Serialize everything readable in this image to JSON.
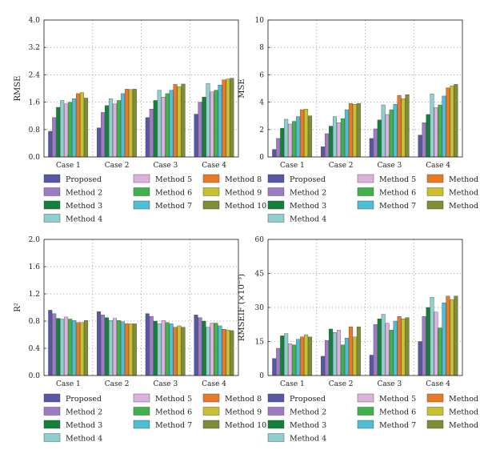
{
  "colors": {
    "Proposed": "#5a56a6",
    "Method 2": "#9d7cc4",
    "Method 3": "#13803c",
    "Method 4": "#8fcfcf",
    "Method 5": "#dcb2dc",
    "Method 6": "#40b24c",
    "Method 7": "#4cbfd6",
    "Method 8": "#e87a26",
    "Method 9": "#c8c02c",
    "Method 10": "#7e8e34"
  },
  "legend_layout": [
    [
      "Proposed",
      "Method 5",
      "Method 8"
    ],
    [
      "Method 2",
      "Method 6",
      "Method 9"
    ],
    [
      "Method 3",
      "Method 7",
      "Method 10"
    ],
    [
      "Method 4"
    ]
  ],
  "chart_data": [
    {
      "type": "bar",
      "ylabel": "RMSE",
      "ylim": [
        0,
        4.0
      ],
      "yticks": [
        "0.0",
        "0.8",
        "1.6",
        "2.4",
        "3.2",
        "4.0"
      ],
      "grid": true,
      "legend": "below",
      "categories": [
        "Case 1",
        "Case 2",
        "Case 3",
        "Case 4"
      ],
      "series": [
        {
          "name": "Proposed",
          "values": [
            0.75,
            0.85,
            1.15,
            1.25
          ]
        },
        {
          "name": "Method 2",
          "values": [
            1.15,
            1.3,
            1.4,
            1.6
          ]
        },
        {
          "name": "Method 3",
          "values": [
            1.45,
            1.5,
            1.65,
            1.75
          ]
        },
        {
          "name": "Method 4",
          "values": [
            1.65,
            1.7,
            1.95,
            2.15
          ]
        },
        {
          "name": "Method 5",
          "values": [
            1.55,
            1.55,
            1.75,
            1.9
          ]
        },
        {
          "name": "Method 6",
          "values": [
            1.6,
            1.65,
            1.85,
            1.95
          ]
        },
        {
          "name": "Method 7",
          "values": [
            1.7,
            1.85,
            1.95,
            2.1
          ]
        },
        {
          "name": "Method 8",
          "values": [
            1.85,
            1.98,
            2.12,
            2.25
          ]
        },
        {
          "name": "Method 9",
          "values": [
            1.88,
            1.97,
            2.05,
            2.28
          ]
        },
        {
          "name": "Method 10",
          "values": [
            1.72,
            1.98,
            2.13,
            2.3
          ]
        }
      ]
    },
    {
      "type": "bar",
      "ylabel": "MSE",
      "ylim": [
        0,
        10
      ],
      "yticks": [
        "0",
        "2",
        "4",
        "6",
        "8",
        "10"
      ],
      "grid": true,
      "legend": "below",
      "categories": [
        "Case 1",
        "Case 2",
        "Case 3",
        "Case 4"
      ],
      "series": [
        {
          "name": "Proposed",
          "values": [
            0.55,
            0.75,
            1.35,
            1.6
          ]
        },
        {
          "name": "Method 2",
          "values": [
            1.35,
            1.7,
            2.05,
            2.5
          ]
        },
        {
          "name": "Method 3",
          "values": [
            2.1,
            2.25,
            2.7,
            3.1
          ]
        },
        {
          "name": "Method 4",
          "values": [
            2.75,
            2.95,
            3.8,
            4.6
          ]
        },
        {
          "name": "Method 5",
          "values": [
            2.4,
            2.5,
            3.1,
            3.6
          ]
        },
        {
          "name": "Method 6",
          "values": [
            2.6,
            2.8,
            3.45,
            3.8
          ]
        },
        {
          "name": "Method 7",
          "values": [
            2.95,
            3.45,
            3.85,
            4.45
          ]
        },
        {
          "name": "Method 8",
          "values": [
            3.45,
            3.9,
            4.5,
            5.05
          ]
        },
        {
          "name": "Method 9",
          "values": [
            3.5,
            3.85,
            4.25,
            5.2
          ]
        },
        {
          "name": "Method 10",
          "values": [
            3.0,
            3.9,
            4.55,
            5.3
          ]
        }
      ]
    },
    {
      "type": "bar",
      "ylabel": "R²",
      "ylim": [
        0,
        2.0
      ],
      "yticks": [
        "0.0",
        "0.4",
        "0.8",
        "1.2",
        "1.6",
        "2.0"
      ],
      "grid": true,
      "legend": "below",
      "categories": [
        "Case 1",
        "Case 2",
        "Case 3",
        "Case 4"
      ],
      "series": [
        {
          "name": "Proposed",
          "values": [
            0.96,
            0.94,
            0.91,
            0.89
          ]
        },
        {
          "name": "Method 2",
          "values": [
            0.91,
            0.89,
            0.87,
            0.85
          ]
        },
        {
          "name": "Method 3",
          "values": [
            0.84,
            0.85,
            0.8,
            0.8
          ]
        },
        {
          "name": "Method 4",
          "values": [
            0.83,
            0.81,
            0.76,
            0.71
          ]
        },
        {
          "name": "Method 5",
          "values": [
            0.86,
            0.84,
            0.81,
            0.77
          ]
        },
        {
          "name": "Method 6",
          "values": [
            0.83,
            0.81,
            0.78,
            0.77
          ]
        },
        {
          "name": "Method 7",
          "values": [
            0.81,
            0.79,
            0.76,
            0.73
          ]
        },
        {
          "name": "Method 8",
          "values": [
            0.78,
            0.76,
            0.71,
            0.68
          ]
        },
        {
          "name": "Method 9",
          "values": [
            0.78,
            0.76,
            0.73,
            0.67
          ]
        },
        {
          "name": "Method 10",
          "values": [
            0.81,
            0.76,
            0.71,
            0.66
          ]
        }
      ]
    },
    {
      "type": "bar",
      "ylabel": "RMSEIF (×10⁻³)",
      "ylim": [
        0,
        60
      ],
      "yticks": [
        "0",
        "15",
        "30",
        "45",
        "60"
      ],
      "grid": true,
      "legend": "below",
      "categories": [
        "Case 1",
        "Case 2",
        "Case 3",
        "Case 4"
      ],
      "series": [
        {
          "name": "Proposed",
          "values": [
            7.5,
            8.5,
            9.0,
            15.0
          ]
        },
        {
          "name": "Method 2",
          "values": [
            12.0,
            15.5,
            22.5,
            26.0
          ]
        },
        {
          "name": "Method 3",
          "values": [
            17.5,
            20.5,
            25.0,
            30.0
          ]
        },
        {
          "name": "Method 4",
          "values": [
            18.5,
            19.0,
            27.0,
            34.5
          ]
        },
        {
          "name": "Method 5",
          "values": [
            14.0,
            20.0,
            23.0,
            28.0
          ]
        },
        {
          "name": "Method 6",
          "values": [
            13.5,
            13.5,
            20.0,
            21.0
          ]
        },
        {
          "name": "Method 7",
          "values": [
            16.0,
            16.5,
            24.0,
            32.0
          ]
        },
        {
          "name": "Method 8",
          "values": [
            17.0,
            21.5,
            26.0,
            35.0
          ]
        },
        {
          "name": "Method 9",
          "values": [
            18.0,
            17.0,
            25.0,
            33.5
          ]
        },
        {
          "name": "Method 10",
          "values": [
            17.0,
            21.5,
            25.5,
            35.0
          ]
        }
      ]
    }
  ]
}
